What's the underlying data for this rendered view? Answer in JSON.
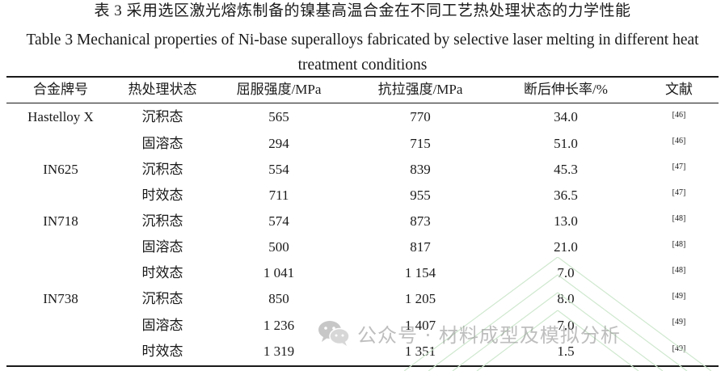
{
  "title_cn": "表 3  采用选区激光熔炼制备的镍基高温合金在不同工艺热处理状态的力学性能",
  "title_en": "Table 3 Mechanical properties of Ni-base superalloys fabricated by selective laser melting in different heat treatment conditions",
  "headers": [
    "合金牌号",
    "热处理状态",
    "屈服强度/MPa",
    "抗拉强度/MPa",
    "断后伸长率/%",
    "文献"
  ],
  "rows": [
    {
      "alloy": "Hastelloy X",
      "state": "沉积态",
      "yield": "565",
      "tensile": "770",
      "elong": "34.0",
      "ref": "[46]"
    },
    {
      "alloy": "",
      "state": "固溶态",
      "yield": "294",
      "tensile": "715",
      "elong": "51.0",
      "ref": "[46]"
    },
    {
      "alloy": "IN625",
      "state": "沉积态",
      "yield": "554",
      "tensile": "839",
      "elong": "45.3",
      "ref": "[47]"
    },
    {
      "alloy": "",
      "state": "时效态",
      "yield": "711",
      "tensile": "955",
      "elong": "36.5",
      "ref": "[47]"
    },
    {
      "alloy": "IN718",
      "state": "沉积态",
      "yield": "574",
      "tensile": "873",
      "elong": "13.0",
      "ref": "[48]"
    },
    {
      "alloy": "",
      "state": "固溶态",
      "yield": "500",
      "tensile": "817",
      "elong": "21.0",
      "ref": "[48]"
    },
    {
      "alloy": "",
      "state": "时效态",
      "yield": "1 041",
      "tensile": "1 154",
      "elong": "7.0",
      "ref": "[48]"
    },
    {
      "alloy": "IN738",
      "state": "沉积态",
      "yield": "850",
      "tensile": "1 205",
      "elong": "8.0",
      "ref": "[49]"
    },
    {
      "alloy": "",
      "state": "固溶态",
      "yield": "1 236",
      "tensile": "1 407",
      "elong": "7.0",
      "ref": "[49]"
    },
    {
      "alloy": "",
      "state": "时效态",
      "yield": "1 319",
      "tensile": "1 351",
      "elong": "1.5",
      "ref": "[49]"
    }
  ],
  "watermark": {
    "text": "公众号 · 材料成型及模拟分析",
    "icon": "wechat-icon"
  }
}
